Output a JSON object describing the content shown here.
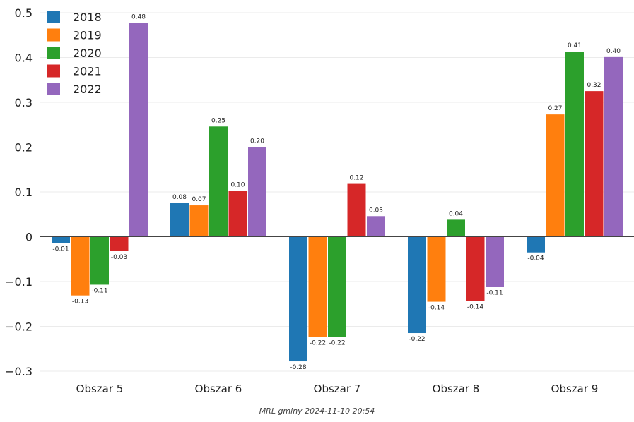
{
  "chart_data": {
    "type": "bar",
    "categories": [
      "Obszar 5",
      "Obszar 6",
      "Obszar 7",
      "Obszar 8",
      "Obszar 9"
    ],
    "series": [
      {
        "name": "2018",
        "color": "#1f77b4",
        "values": [
          -0.014,
          0.075,
          -0.278,
          -0.215,
          -0.035
        ],
        "labels": [
          "-0.01",
          "0.08",
          "-0.28",
          "-0.22",
          "-0.04"
        ]
      },
      {
        "name": "2019",
        "color": "#ff7f0e",
        "values": [
          -0.131,
          0.07,
          -0.224,
          -0.145,
          0.273
        ],
        "labels": [
          "-0.13",
          "0.07",
          "-0.22",
          "-0.14",
          "0.27"
        ]
      },
      {
        "name": "2020",
        "color": "#2ca02c",
        "values": [
          -0.107,
          0.246,
          -0.224,
          0.038,
          0.413
        ],
        "labels": [
          "-0.11",
          "0.25",
          "-0.22",
          "0.04",
          "0.41"
        ]
      },
      {
        "name": "2021",
        "color": "#d62728",
        "values": [
          -0.032,
          0.102,
          0.118,
          -0.143,
          0.325
        ],
        "labels": [
          "-0.03",
          "0.10",
          "0.12",
          "-0.14",
          "0.32"
        ]
      },
      {
        "name": "2022",
        "color": "#9467bd",
        "values": [
          0.477,
          0.2,
          0.046,
          -0.112,
          0.401
        ],
        "labels": [
          "0.48",
          "0.20",
          "0.05",
          "-0.11",
          "0.40"
        ]
      }
    ],
    "ylim": [
      -0.3,
      0.5
    ],
    "yticks": [
      -0.3,
      -0.2,
      -0.1,
      0,
      0.1,
      0.2,
      0.3,
      0.4,
      0.5
    ],
    "ytick_labels": [
      "−0.3",
      "−0.2",
      "−0.1",
      "0",
      "0.1",
      "0.2",
      "0.3",
      "0.4",
      "0.5"
    ],
    "grid": true,
    "legend_position": "top-left",
    "xlabel": "",
    "ylabel": "",
    "title": ""
  },
  "footer": "MRL gminy 2024-11-10 20:54"
}
